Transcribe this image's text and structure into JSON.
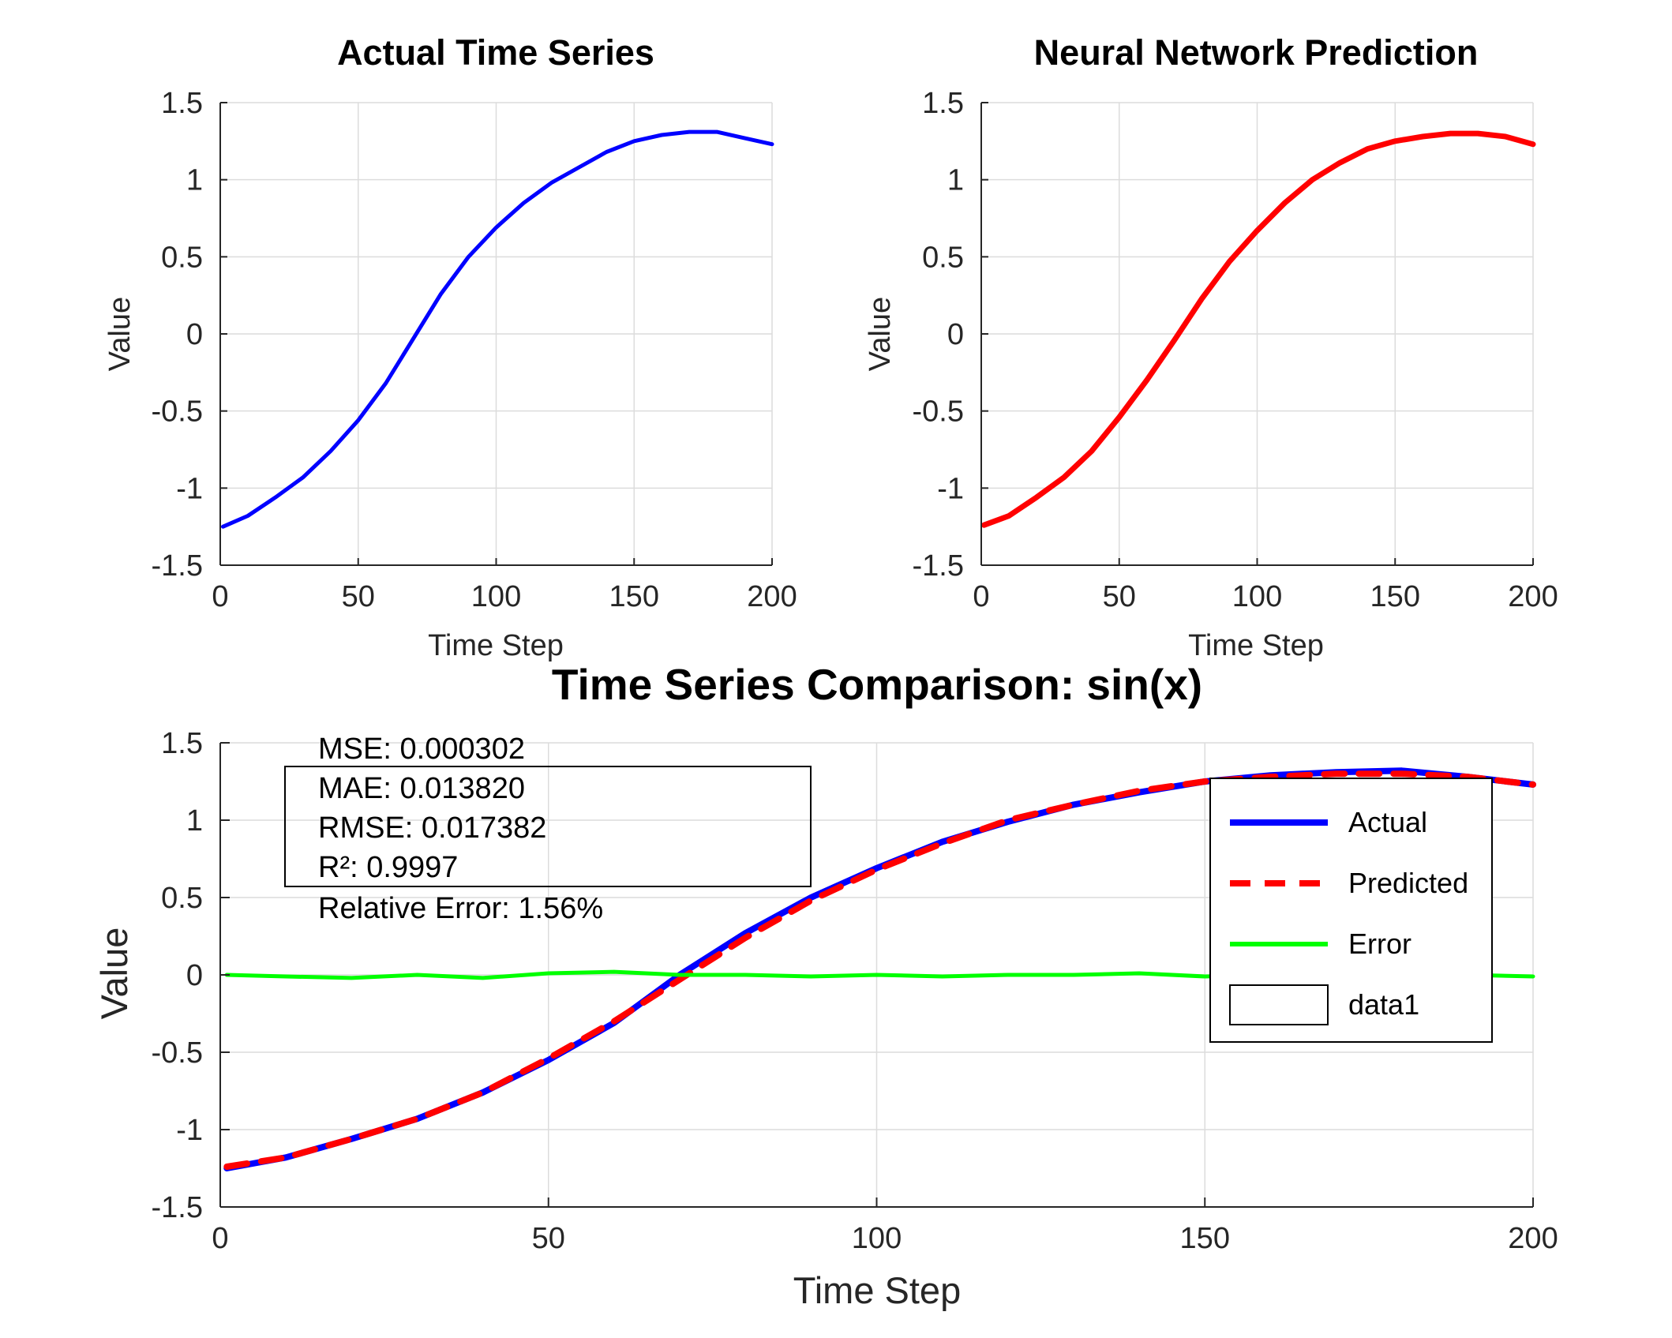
{
  "colors": {
    "actual": "#0000ff",
    "predicted": "#ff0000",
    "error": "#00ff00"
  },
  "chart_data": [
    {
      "type": "line",
      "title": "Actual Time Series",
      "xlabel": "Time Step",
      "ylabel": "Value",
      "xlim": [
        0,
        200
      ],
      "ylim": [
        -1.5,
        1.5
      ],
      "xticks": [
        0,
        50,
        100,
        150,
        200
      ],
      "yticks": [
        -1.5,
        -1,
        -0.5,
        0,
        0.5,
        1,
        1.5
      ],
      "grid": true,
      "series": [
        {
          "color": "#0000ff",
          "x": [
            1,
            10,
            20,
            30,
            40,
            50,
            60,
            70,
            80,
            90,
            100,
            110,
            120,
            130,
            140,
            150,
            160,
            170,
            180,
            190,
            200
          ],
          "y": [
            -1.25,
            -1.18,
            -1.06,
            -0.93,
            -0.76,
            -0.56,
            -0.32,
            -0.03,
            0.26,
            0.5,
            0.69,
            0.85,
            0.98,
            1.08,
            1.18,
            1.25,
            1.29,
            1.31,
            1.31,
            1.27,
            1.23
          ]
        }
      ]
    },
    {
      "type": "line",
      "title": "Neural Network Prediction",
      "xlabel": "Time Step",
      "ylabel": "Value",
      "xlim": [
        0,
        200
      ],
      "ylim": [
        -1.5,
        1.5
      ],
      "xticks": [
        0,
        50,
        100,
        150,
        200
      ],
      "yticks": [
        -1.5,
        -1,
        -0.5,
        0,
        0.5,
        1,
        1.5
      ],
      "grid": true,
      "series": [
        {
          "color": "#ff0000",
          "x": [
            1,
            10,
            20,
            30,
            40,
            50,
            60,
            70,
            80,
            90,
            100,
            110,
            120,
            130,
            140,
            150,
            160,
            170,
            180,
            190,
            200
          ],
          "y": [
            -1.24,
            -1.18,
            -1.06,
            -0.93,
            -0.76,
            -0.54,
            -0.3,
            -0.04,
            0.23,
            0.47,
            0.67,
            0.85,
            1.0,
            1.11,
            1.2,
            1.25,
            1.28,
            1.3,
            1.3,
            1.28,
            1.23
          ]
        }
      ]
    },
    {
      "type": "line",
      "title": "Time Series Comparison: sin(x)",
      "xlabel": "Time Step",
      "ylabel": "Value",
      "xlim": [
        0,
        200
      ],
      "ylim": [
        -1.5,
        1.5
      ],
      "xticks": [
        0,
        50,
        100,
        150,
        200
      ],
      "yticks": [
        -1.5,
        -1,
        -0.5,
        0,
        0.5,
        1,
        1.5
      ],
      "grid": true,
      "legend_position": "top-right",
      "series": [
        {
          "name": "Actual",
          "color": "#0000ff",
          "style": "solid",
          "x": [
            1,
            10,
            20,
            30,
            40,
            50,
            60,
            70,
            80,
            90,
            100,
            110,
            120,
            130,
            140,
            150,
            160,
            170,
            180,
            190,
            200
          ],
          "y": [
            -1.25,
            -1.18,
            -1.06,
            -0.93,
            -0.76,
            -0.55,
            -0.31,
            0.0,
            0.27,
            0.5,
            0.69,
            0.86,
            0.99,
            1.1,
            1.18,
            1.25,
            1.29,
            1.31,
            1.32,
            1.28,
            1.23
          ]
        },
        {
          "name": "Predicted",
          "color": "#ff0000",
          "style": "dashed",
          "x": [
            1,
            10,
            20,
            30,
            40,
            50,
            60,
            70,
            80,
            90,
            100,
            110,
            120,
            130,
            140,
            150,
            160,
            170,
            180,
            190,
            200
          ],
          "y": [
            -1.24,
            -1.18,
            -1.06,
            -0.93,
            -0.76,
            -0.54,
            -0.3,
            -0.03,
            0.24,
            0.48,
            0.68,
            0.85,
            1.0,
            1.1,
            1.19,
            1.25,
            1.28,
            1.3,
            1.3,
            1.28,
            1.23
          ]
        },
        {
          "name": "Error",
          "color": "#00ff00",
          "style": "solid",
          "x": [
            1,
            10,
            20,
            30,
            40,
            50,
            60,
            70,
            80,
            90,
            100,
            110,
            120,
            130,
            140,
            150,
            160,
            170,
            180,
            190,
            200
          ],
          "y": [
            0.0,
            -0.01,
            -0.02,
            0.0,
            -0.02,
            0.01,
            0.02,
            0.0,
            0.0,
            -0.01,
            0.0,
            -0.01,
            0.0,
            0.0,
            0.01,
            -0.01,
            0.0,
            0.0,
            0.0,
            0.0,
            -0.01
          ]
        },
        {
          "name": "data1",
          "color": "#000000",
          "style": "box",
          "x": [],
          "y": []
        }
      ],
      "stats": [
        "MSE: 0.000302",
        "MAE: 0.013820",
        "RMSE: 0.017382",
        "R²: 0.9997",
        "Relative Error: 1.56%"
      ]
    }
  ]
}
